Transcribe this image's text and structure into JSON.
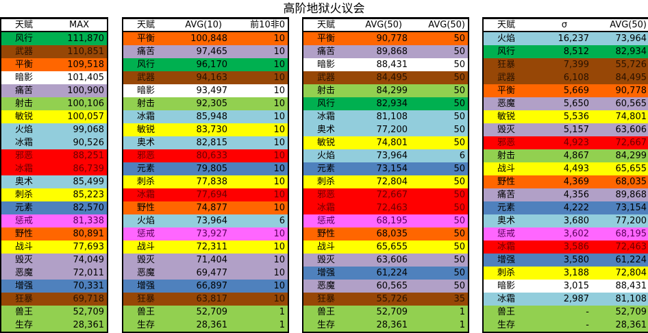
{
  "title": "高阶地狱火议会",
  "palette": {
    "green": {
      "bg": "#00b050",
      "fg": "#000000"
    },
    "brown": {
      "bg": "#974706",
      "fg": "#2a1200"
    },
    "orange": {
      "bg": "#ff6600",
      "fg": "#000000"
    },
    "white": {
      "bg": "#ffffff",
      "fg": "#000000"
    },
    "lavender": {
      "bg": "#b1a0c7",
      "fg": "#000000"
    },
    "lightgreen": {
      "bg": "#92d050",
      "fg": "#000000"
    },
    "yellow": {
      "bg": "#ffff00",
      "fg": "#000000"
    },
    "lightblue": {
      "bg": "#92cddc",
      "fg": "#000000"
    },
    "red": {
      "bg": "#ff0000",
      "fg": "#6b0000"
    },
    "steelblue": {
      "bg": "#4f81bd",
      "fg": "#000000"
    },
    "magenta": {
      "bg": "#ff66ff",
      "fg": "#5a005a"
    }
  },
  "tables": [
    {
      "headers": [
        "天赋",
        "MAX"
      ],
      "rows": [
        [
          "风行",
          "green",
          "111,870"
        ],
        [
          "武器",
          "brown",
          "110,851"
        ],
        [
          "平衡",
          "orange",
          "109,518"
        ],
        [
          "暗影",
          "white",
          "101,405"
        ],
        [
          "痛苦",
          "lavender",
          "100,900"
        ],
        [
          "射击",
          "lightgreen",
          "100,106"
        ],
        [
          "敏锐",
          "yellow",
          "100,057"
        ],
        [
          "火焰",
          "lightblue",
          "99,068"
        ],
        [
          "冰霜",
          "lightblue",
          "90,526"
        ],
        [
          "邪恶",
          "red",
          "88,251"
        ],
        [
          "冰霜",
          "red",
          "86,739"
        ],
        [
          "奥术",
          "lightblue",
          "85,499"
        ],
        [
          "刺杀",
          "yellow",
          "85,223"
        ],
        [
          "元素",
          "steelblue",
          "82,570"
        ],
        [
          "惩戒",
          "magenta",
          "81,338"
        ],
        [
          "野性",
          "orange",
          "80,891"
        ],
        [
          "战斗",
          "yellow",
          "77,693"
        ],
        [
          "毁灭",
          "lavender",
          "74,049"
        ],
        [
          "恶魔",
          "lavender",
          "72,011"
        ],
        [
          "增强",
          "steelblue",
          "70,331"
        ],
        [
          "狂暴",
          "brown",
          "69,718"
        ],
        [
          "兽王",
          "lightgreen",
          "52,709"
        ],
        [
          "生存",
          "lightgreen",
          "28,361"
        ]
      ]
    },
    {
      "headers": [
        "天赋",
        "AVG(10)",
        "前10非0"
      ],
      "rows": [
        [
          "平衡",
          "orange",
          "100,848",
          "10"
        ],
        [
          "痛苦",
          "lavender",
          "97,465",
          "10"
        ],
        [
          "风行",
          "green",
          "96,170",
          "10"
        ],
        [
          "武器",
          "brown",
          "94,163",
          "10"
        ],
        [
          "暗影",
          "white",
          "93,497",
          "10"
        ],
        [
          "射击",
          "lightgreen",
          "92,305",
          "10"
        ],
        [
          "冰霜",
          "lightblue",
          "85,948",
          "10"
        ],
        [
          "敏锐",
          "yellow",
          "83,730",
          "10"
        ],
        [
          "奥术",
          "lightblue",
          "82,815",
          "10"
        ],
        [
          "邪恶",
          "red",
          "80,633",
          "10"
        ],
        [
          "元素",
          "steelblue",
          "79,805",
          "10"
        ],
        [
          "刺杀",
          "yellow",
          "77,838",
          "10"
        ],
        [
          "冰霜",
          "red",
          "77,694",
          "10"
        ],
        [
          "野性",
          "orange",
          "74,877",
          "10"
        ],
        [
          "火焰",
          "lightblue",
          "73,964",
          "6"
        ],
        [
          "惩戒",
          "magenta",
          "73,927",
          "10"
        ],
        [
          "战斗",
          "yellow",
          "72,311",
          "10"
        ],
        [
          "毁灭",
          "lavender",
          "71,404",
          "10"
        ],
        [
          "恶魔",
          "lavender",
          "69,477",
          "10"
        ],
        [
          "增强",
          "steelblue",
          "66,897",
          "10"
        ],
        [
          "狂暴",
          "brown",
          "63,817",
          "10"
        ],
        [
          "兽王",
          "lightgreen",
          "52,709",
          "1"
        ],
        [
          "生存",
          "lightgreen",
          "28,361",
          "1"
        ]
      ]
    },
    {
      "headers": [
        "天赋",
        "AVG(50)",
        "AVG(50)"
      ],
      "rows": [
        [
          "平衡",
          "orange",
          "90,778",
          "50"
        ],
        [
          "痛苦",
          "lavender",
          "89,868",
          "50"
        ],
        [
          "暗影",
          "white",
          "88,431",
          "50"
        ],
        [
          "武器",
          "brown",
          "84,495",
          "50"
        ],
        [
          "射击",
          "lightgreen",
          "84,299",
          "50"
        ],
        [
          "风行",
          "green",
          "82,934",
          "50"
        ],
        [
          "冰霜",
          "lightblue",
          "81,108",
          "50"
        ],
        [
          "奥术",
          "lightblue",
          "77,200",
          "50"
        ],
        [
          "敏锐",
          "yellow",
          "74,801",
          "50"
        ],
        [
          "火焰",
          "lightblue",
          "73,964",
          "6"
        ],
        [
          "元素",
          "steelblue",
          "73,154",
          "50"
        ],
        [
          "刺杀",
          "yellow",
          "72,804",
          "50"
        ],
        [
          "邪恶",
          "red",
          "72,667",
          "50"
        ],
        [
          "冰霜",
          "red",
          "72,463",
          "50"
        ],
        [
          "惩戒",
          "magenta",
          "68,195",
          "50"
        ],
        [
          "野性",
          "orange",
          "68,035",
          "50"
        ],
        [
          "战斗",
          "yellow",
          "65,655",
          "50"
        ],
        [
          "毁灭",
          "lavender",
          "63,606",
          "50"
        ],
        [
          "增强",
          "steelblue",
          "61,224",
          "50"
        ],
        [
          "恶魔",
          "lavender",
          "60,565",
          "50"
        ],
        [
          "狂暴",
          "brown",
          "55,726",
          "35"
        ],
        [
          "兽王",
          "lightgreen",
          "52,709",
          "1"
        ],
        [
          "生存",
          "lightgreen",
          "28,361",
          "1"
        ]
      ]
    },
    {
      "headers": [
        "天赋",
        "σ",
        "AVG(50)"
      ],
      "rows": [
        [
          "火焰",
          "lightblue",
          "16,237",
          "73,964"
        ],
        [
          "风行",
          "green",
          "8,512",
          "82,934"
        ],
        [
          "狂暴",
          "brown",
          "7,399",
          "55,726"
        ],
        [
          "武器",
          "brown",
          "6,108",
          "84,495"
        ],
        [
          "平衡",
          "orange",
          "5,669",
          "90,778"
        ],
        [
          "恶魔",
          "lavender",
          "5,650",
          "60,565"
        ],
        [
          "敏锐",
          "yellow",
          "5,536",
          "74,801"
        ],
        [
          "毁灭",
          "lavender",
          "5,157",
          "63,606"
        ],
        [
          "邪恶",
          "red",
          "4,923",
          "72,667"
        ],
        [
          "射击",
          "lightgreen",
          "4,867",
          "84,299"
        ],
        [
          "战斗",
          "yellow",
          "4,493",
          "65,655"
        ],
        [
          "野性",
          "orange",
          "4,369",
          "68,035"
        ],
        [
          "痛苦",
          "lavender",
          "4,356",
          "89,868"
        ],
        [
          "元素",
          "steelblue",
          "4,222",
          "73,154"
        ],
        [
          "奥术",
          "lightblue",
          "3,680",
          "77,200"
        ],
        [
          "惩戒",
          "magenta",
          "3,602",
          "68,195"
        ],
        [
          "冰霜",
          "red",
          "3,586",
          "72,463"
        ],
        [
          "增强",
          "steelblue",
          "3,580",
          "61,224"
        ],
        [
          "刺杀",
          "yellow",
          "3,188",
          "72,804"
        ],
        [
          "暗影",
          "white",
          "3,015",
          "88,431"
        ],
        [
          "冰霜",
          "lightblue",
          "2,987",
          "81,108"
        ],
        [
          "兽王",
          "lightgreen",
          "-",
          "52,709"
        ],
        [
          "生存",
          "lightgreen",
          "-",
          "28,361"
        ]
      ]
    }
  ]
}
